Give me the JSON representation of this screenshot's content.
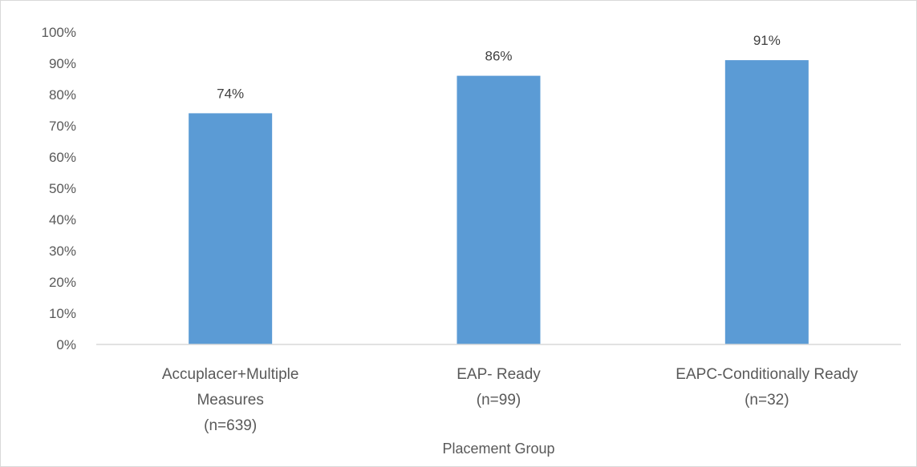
{
  "chart_data": {
    "type": "bar",
    "categories": [
      [
        "Accuplacer+Multiple",
        "Measures",
        "(n=639)"
      ],
      [
        "EAP- Ready",
        "(n=99)"
      ],
      [
        "EAPC-Conditionally Ready",
        "(n=32)"
      ]
    ],
    "values": [
      74,
      86,
      91
    ],
    "data_labels": [
      "74%",
      "86%",
      "91%"
    ],
    "y_ticks": [
      "0%",
      "10%",
      "20%",
      "30%",
      "40%",
      "50%",
      "60%",
      "70%",
      "80%",
      "90%",
      "100%"
    ],
    "ylim": [
      0,
      100
    ],
    "xlabel": "Placement Group",
    "ylabel": "",
    "title": "",
    "grid": false,
    "legend": "none",
    "bar_color": "#5b9bd5",
    "axis_color": "#d9d9d9"
  }
}
